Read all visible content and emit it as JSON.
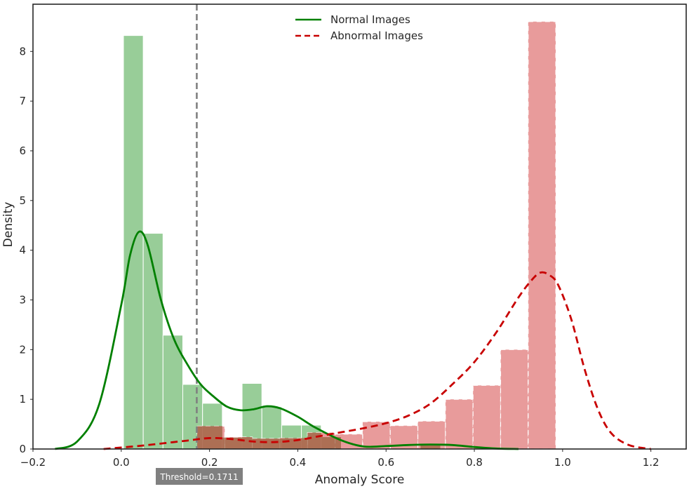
{
  "chart_data": {
    "type": "bar",
    "xlabel": "Anomaly Score",
    "ylabel": "Density",
    "xlim": [
      -0.2,
      1.28
    ],
    "ylim": [
      0,
      8.95
    ],
    "xticks": [
      -0.2,
      0.0,
      0.2,
      0.4,
      0.6,
      0.8,
      1.0,
      1.2
    ],
    "xtick_labels": [
      "−0.2",
      "0.0",
      "0.2",
      "0.4",
      "0.6",
      "0.8",
      "1.0",
      "1.2"
    ],
    "yticks": [
      0,
      1,
      2,
      3,
      4,
      5,
      6,
      7,
      8
    ],
    "grid": false,
    "legend": {
      "position": "top-center"
    },
    "threshold": {
      "value": 0.1711,
      "label": "Threshold=0.1711",
      "color": "#808080"
    },
    "series": [
      {
        "name": "Normal Images",
        "histogram_color": "#8fc98f",
        "kde_color": "#008000",
        "kde_style": "solid",
        "bin_width": 0.0448,
        "bins": [
          {
            "x0": 0.005,
            "height": 8.32
          },
          {
            "x0": 0.0498,
            "height": 4.34
          },
          {
            "x0": 0.0946,
            "height": 2.29
          },
          {
            "x0": 0.1394,
            "height": 1.3
          },
          {
            "x0": 0.1842,
            "height": 0.92
          },
          {
            "x0": 0.229,
            "height": 0.23
          },
          {
            "x0": 0.2738,
            "height": 1.32
          },
          {
            "x0": 0.3186,
            "height": 0.85
          },
          {
            "x0": 0.3634,
            "height": 0.48
          },
          {
            "x0": 0.4082,
            "height": 0.48
          },
          {
            "x0": 0.453,
            "height": 0.24
          },
          {
            "x0": 0.678,
            "height": 0.07
          }
        ],
        "kde": {
          "x": [
            -0.15,
            -0.1,
            -0.05,
            0.0,
            0.02,
            0.04,
            0.06,
            0.09,
            0.12,
            0.15,
            0.18,
            0.21,
            0.24,
            0.27,
            0.3,
            0.33,
            0.36,
            0.4,
            0.44,
            0.5,
            0.55,
            0.6,
            0.65,
            0.7,
            0.75,
            0.8,
            0.85,
            0.9
          ],
          "y": [
            0.0,
            0.15,
            0.9,
            2.9,
            3.9,
            4.37,
            4.1,
            3.0,
            2.2,
            1.7,
            1.3,
            1.05,
            0.85,
            0.78,
            0.8,
            0.86,
            0.82,
            0.65,
            0.43,
            0.17,
            0.05,
            0.06,
            0.08,
            0.09,
            0.08,
            0.04,
            0.01,
            0.0
          ]
        }
      },
      {
        "name": "Abnormal Images",
        "histogram_color": "#e58d8d",
        "kde_color": "#c80000",
        "kde_style": "dashed",
        "bin_width": 0.0625,
        "bins": [
          {
            "x0": 0.172,
            "height": 0.46
          },
          {
            "x0": 0.2345,
            "height": 0.24
          },
          {
            "x0": 0.297,
            "height": 0.21
          },
          {
            "x0": 0.3595,
            "height": 0.22
          },
          {
            "x0": 0.422,
            "height": 0.33
          },
          {
            "x0": 0.4845,
            "height": 0.3
          },
          {
            "x0": 0.547,
            "height": 0.55
          },
          {
            "x0": 0.6095,
            "height": 0.47
          },
          {
            "x0": 0.672,
            "height": 0.56
          },
          {
            "x0": 0.7345,
            "height": 1.0
          },
          {
            "x0": 0.797,
            "height": 1.28
          },
          {
            "x0": 0.8595,
            "height": 2.0
          },
          {
            "x0": 0.922,
            "height": 8.6
          }
        ],
        "kde": {
          "x": [
            -0.04,
            0.0,
            0.05,
            0.1,
            0.15,
            0.2,
            0.25,
            0.3,
            0.35,
            0.4,
            0.45,
            0.5,
            0.55,
            0.6,
            0.65,
            0.7,
            0.75,
            0.8,
            0.85,
            0.9,
            0.93,
            0.95,
            0.97,
            0.99,
            1.02,
            1.05,
            1.08,
            1.11,
            1.15,
            1.2
          ],
          "y": [
            0.0,
            0.03,
            0.07,
            0.12,
            0.17,
            0.22,
            0.2,
            0.15,
            0.14,
            0.18,
            0.26,
            0.34,
            0.42,
            0.52,
            0.67,
            0.91,
            1.3,
            1.75,
            2.35,
            3.05,
            3.4,
            3.55,
            3.5,
            3.3,
            2.6,
            1.6,
            0.8,
            0.32,
            0.08,
            0.0
          ]
        }
      }
    ]
  }
}
